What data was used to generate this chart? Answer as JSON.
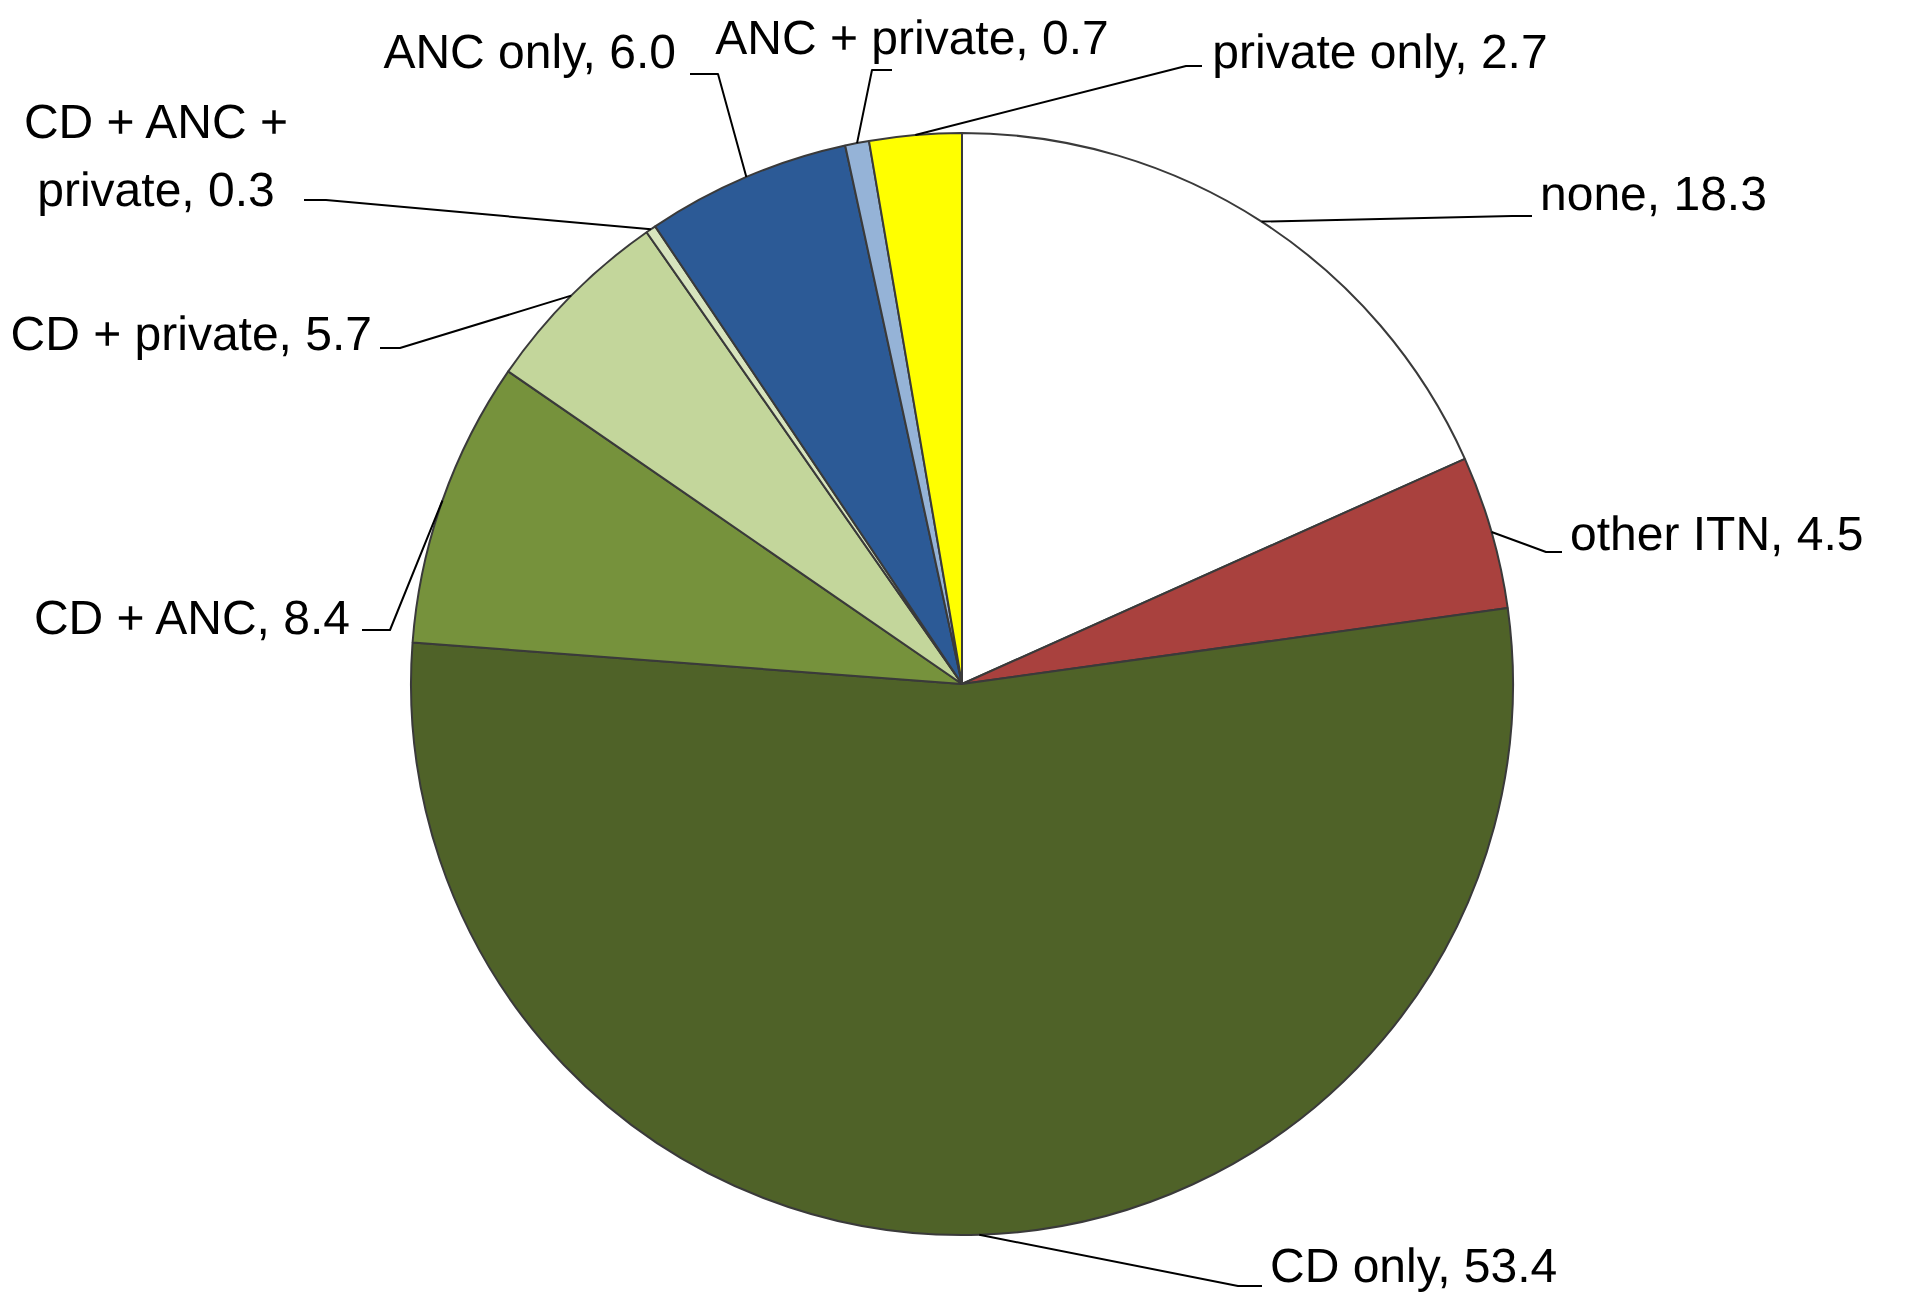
{
  "chart_data": {
    "type": "pie",
    "categories": [
      "none",
      "other ITN",
      "CD only",
      "CD + ANC",
      "CD + private",
      "CD + ANC + private",
      "ANC only",
      "ANC + private",
      "private only"
    ],
    "values": [
      18.3,
      4.5,
      53.4,
      8.4,
      5.7,
      0.3,
      6.0,
      0.7,
      2.7
    ],
    "value_labels": [
      "18.3",
      "4.5",
      "53.4",
      "8.4",
      "5.7",
      "0.3",
      "6.0",
      "0.7",
      "2.7"
    ],
    "colors": [
      "#ffffff",
      "#a9413e",
      "#4f6228",
      "#76923c",
      "#c3d69b",
      "#d7e4bd",
      "#2c5a96",
      "#95b3d7",
      "#ffff00"
    ]
  }
}
